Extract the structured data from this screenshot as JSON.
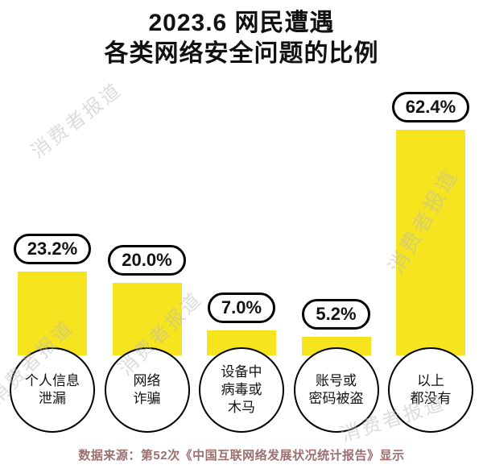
{
  "title": {
    "line1": "2023.6 网民遭遇",
    "line2": "各类网络安全问题的比例"
  },
  "watermark": {
    "text": "消费者报道"
  },
  "footer": {
    "text": "数据来源：第52次《中国互联网络发展状况统计报告》显示"
  },
  "chart_data": {
    "type": "bar",
    "title": "2023.6 网民遭遇各类网络安全问题的比例",
    "categories": [
      "个人信息泄漏",
      "网络诈骗",
      "设备中病毒或木马",
      "账号或密码被盗",
      "以上都没有"
    ],
    "category_lines": [
      [
        "个人信息",
        "泄漏"
      ],
      [
        "网络",
        "诈骗"
      ],
      [
        "设备中",
        "病毒或",
        "木马"
      ],
      [
        "账号或",
        "密码被盗"
      ],
      [
        "以上",
        "都没有"
      ]
    ],
    "values": [
      23.2,
      20.0,
      7.0,
      5.2,
      62.4
    ],
    "value_labels": [
      "23.2%",
      "20.0%",
      "7.0%",
      "5.2%",
      "62.4%"
    ],
    "bar_color": "#F5E41E",
    "ylim": [
      0,
      70
    ],
    "grid": false,
    "legend": false
  }
}
